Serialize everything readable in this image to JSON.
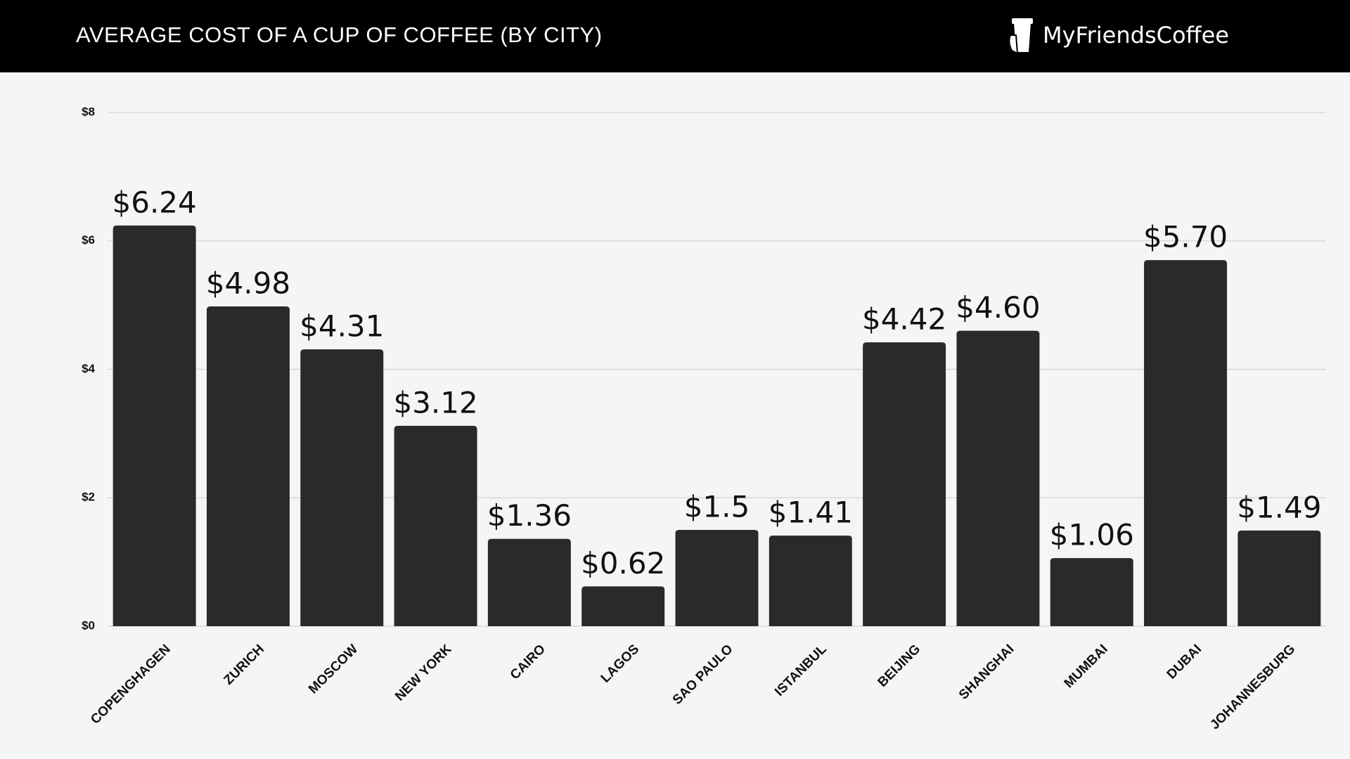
{
  "chart_data": {
    "type": "bar",
    "title": "AVERAGE COST OF A CUP OF COFFEE (BY CITY)",
    "brand": "MyFriendsCoffee",
    "categories": [
      "COPENGHAGEN",
      "ZURICH",
      "MOSCOW",
      "NEW YORK",
      "CAIRO",
      "LAGOS",
      "SAO PAULO",
      "ISTANBUL",
      "BEIJING",
      "SHANGHAI",
      "MUMBAI",
      "DUBAI",
      "JOHANNESBURG"
    ],
    "values": [
      6.24,
      4.98,
      4.31,
      3.12,
      1.36,
      0.62,
      1.5,
      1.41,
      4.42,
      4.6,
      1.06,
      5.7,
      1.49
    ],
    "value_labels": [
      "$6.24",
      "$4.98",
      "$4.31",
      "$3.12",
      "$1.36",
      "$0.62",
      "$1.5",
      "$1.41",
      "$4.42",
      "$4.60",
      "$1.06",
      "$5.70",
      "$1.49"
    ],
    "color": "#2a2a2a",
    "ylim": [
      0,
      8
    ],
    "yticks": [
      {
        "value": 0,
        "label": "$0"
      },
      {
        "value": 2,
        "label": "$2"
      },
      {
        "value": 4,
        "label": "$4"
      },
      {
        "value": 6,
        "label": "$6"
      },
      {
        "value": 8,
        "label": "$8"
      }
    ],
    "grid": true
  }
}
